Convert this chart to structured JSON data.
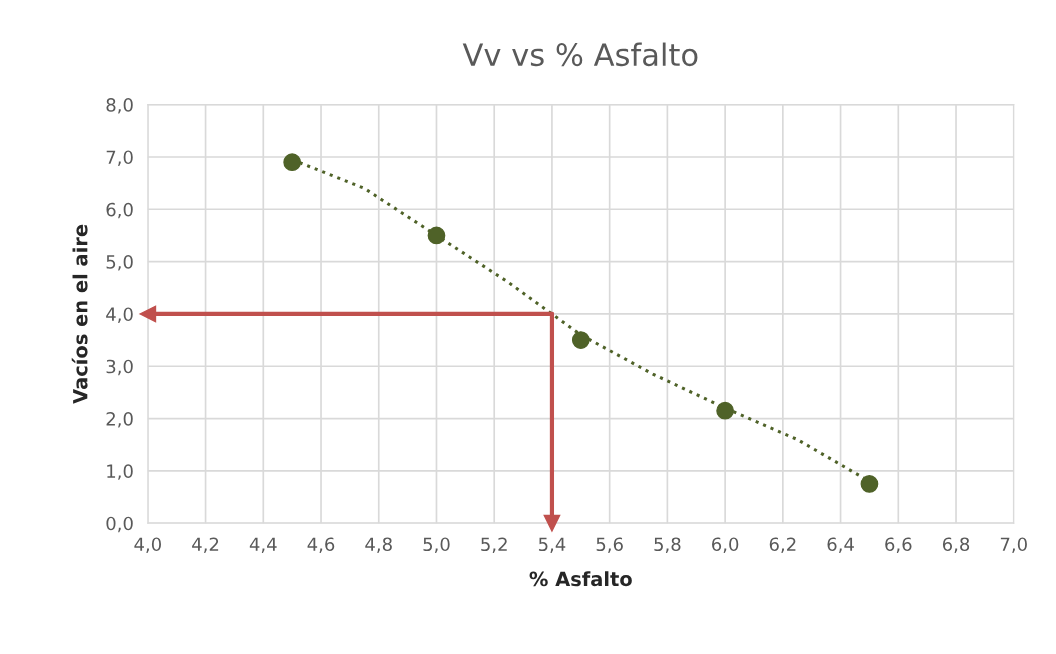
{
  "chart_data": {
    "type": "scatter",
    "title": "Vv vs % Asfalto",
    "xlabel": "% Asfalto",
    "ylabel": "Vacíos en el aire",
    "series": [
      {
        "color": "#4f6228",
        "marker": "circle",
        "x": [
          4.5,
          5.0,
          5.5,
          6.0,
          6.5
        ],
        "values": [
          6.9,
          5.5,
          3.5,
          2.15,
          0.75
        ]
      },
      {
        "type": "line",
        "color": "#4f6228",
        "line_style": "dotted",
        "marker": "none",
        "x": [
          4.5,
          4.75,
          5.0,
          5.25,
          5.4,
          5.5,
          5.75,
          6.0,
          6.25,
          6.5
        ],
        "values": [
          6.95,
          6.4,
          5.5,
          4.6,
          4.0,
          3.6,
          2.85,
          2.2,
          1.6,
          0.8
        ]
      }
    ],
    "xlim": [
      4.0,
      7.0
    ],
    "xticks": [
      {
        "value": 4.0,
        "label": "4,0"
      },
      {
        "value": 4.2,
        "label": "4,2"
      },
      {
        "value": 4.4,
        "label": "4,4"
      },
      {
        "value": 4.6,
        "label": "4,6"
      },
      {
        "value": 4.8,
        "label": "4,8"
      },
      {
        "value": 5.0,
        "label": "5,0"
      },
      {
        "value": 5.2,
        "label": "5,2"
      },
      {
        "value": 5.4,
        "label": "5,4"
      },
      {
        "value": 5.6,
        "label": "5,6"
      },
      {
        "value": 5.8,
        "label": "5,8"
      },
      {
        "value": 6.0,
        "label": "6,0"
      },
      {
        "value": 6.2,
        "label": "6,2"
      },
      {
        "value": 6.4,
        "label": "6,4"
      },
      {
        "value": 6.6,
        "label": "6,6"
      },
      {
        "value": 6.8,
        "label": "6,8"
      },
      {
        "value": 7.0,
        "label": "7,0"
      }
    ],
    "ylim": [
      0.0,
      8.0
    ],
    "yticks": [
      {
        "value": 0.0,
        "label": "0,0"
      },
      {
        "value": 1.0,
        "label": "1,0"
      },
      {
        "value": 2.0,
        "label": "2,0"
      },
      {
        "value": 3.0,
        "label": "3,0"
      },
      {
        "value": 4.0,
        "label": "4,0"
      },
      {
        "value": 5.0,
        "label": "5,0"
      },
      {
        "value": 6.0,
        "label": "6,0"
      },
      {
        "value": 7.0,
        "label": "7,0"
      },
      {
        "value": 8.0,
        "label": "8,0"
      }
    ],
    "ref_lines": [
      {
        "axis": "y",
        "value": 4.0,
        "color": "#c0504d"
      },
      {
        "axis": "x",
        "value": 5.4,
        "color": "#c0504d"
      }
    ],
    "grid": true,
    "legend": false
  }
}
